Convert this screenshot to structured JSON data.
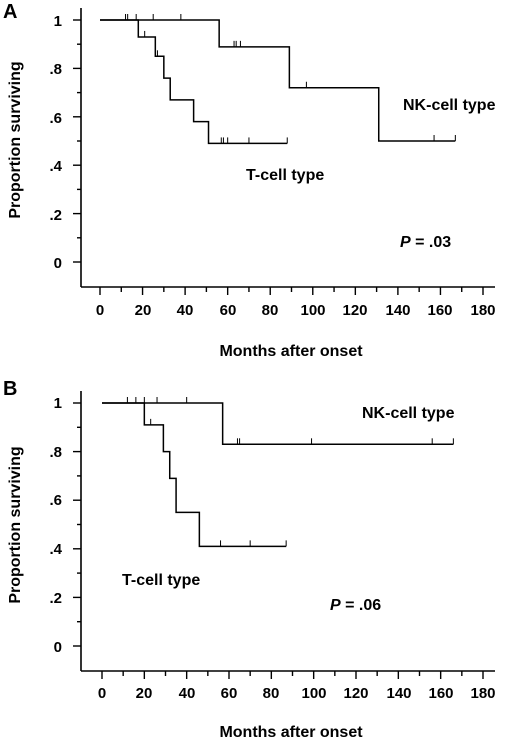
{
  "chart_data": [
    {
      "panel_label": "A",
      "type": "line",
      "step": true,
      "xlabel": "Months after onset",
      "ylabel": "Proportion surviving",
      "xlim": [
        0,
        180
      ],
      "ylim": [
        0,
        1
      ],
      "x_ticks": [
        "0",
        "20",
        "40",
        "60",
        "80",
        "100",
        "120",
        "140",
        "160",
        "180"
      ],
      "y_ticks": [
        "0",
        ".2",
        ".4",
        ".6",
        ".8",
        "1"
      ],
      "grid": false,
      "pvalue": {
        "label": "P",
        "value": " = .03"
      },
      "series": [
        {
          "name": "NK-cell type",
          "steps": [
            [
              0,
              1.0
            ],
            [
              56,
              0.889
            ],
            [
              89,
              0.72
            ],
            [
              131,
              0.5
            ]
          ],
          "end_x": 167,
          "censored_x": [
            12,
            13,
            17,
            25,
            38,
            63,
            64,
            66,
            97,
            157,
            167
          ]
        },
        {
          "name": "T-cell type",
          "steps": [
            [
              0,
              1.0
            ],
            [
              18,
              0.93
            ],
            [
              26,
              0.85
            ],
            [
              30,
              0.76
            ],
            [
              33,
              0.67
            ],
            [
              44,
              0.58
            ],
            [
              51,
              0.49
            ]
          ],
          "end_x": 88,
          "censored_x": [
            21,
            27,
            57,
            58,
            60,
            70,
            88
          ]
        }
      ]
    },
    {
      "panel_label": "B",
      "type": "line",
      "step": true,
      "xlabel": "Months after onset",
      "ylabel": "Proportion surviving",
      "xlim": [
        0,
        180
      ],
      "ylim": [
        0,
        1
      ],
      "x_ticks": [
        "0",
        "20",
        "40",
        "60",
        "80",
        "100",
        "120",
        "140",
        "160",
        "180"
      ],
      "y_ticks": [
        "0",
        ".2",
        ".4",
        ".6",
        ".8",
        "1"
      ],
      "grid": false,
      "pvalue": {
        "label": "P",
        "value": " = .06"
      },
      "series": [
        {
          "name": "NK-cell type",
          "steps": [
            [
              0,
              1.0
            ],
            [
              57,
              0.83
            ]
          ],
          "end_x": 166,
          "censored_x": [
            12,
            16,
            20,
            26,
            40,
            64,
            65,
            99,
            156,
            166
          ]
        },
        {
          "name": "T-cell type",
          "steps": [
            [
              0,
              1.0
            ],
            [
              20,
              0.91
            ],
            [
              29,
              0.8
            ],
            [
              32,
              0.69
            ],
            [
              35,
              0.55
            ],
            [
              46,
              0.41
            ]
          ],
          "end_x": 87,
          "censored_x": [
            23,
            56,
            70,
            87
          ]
        }
      ]
    }
  ]
}
